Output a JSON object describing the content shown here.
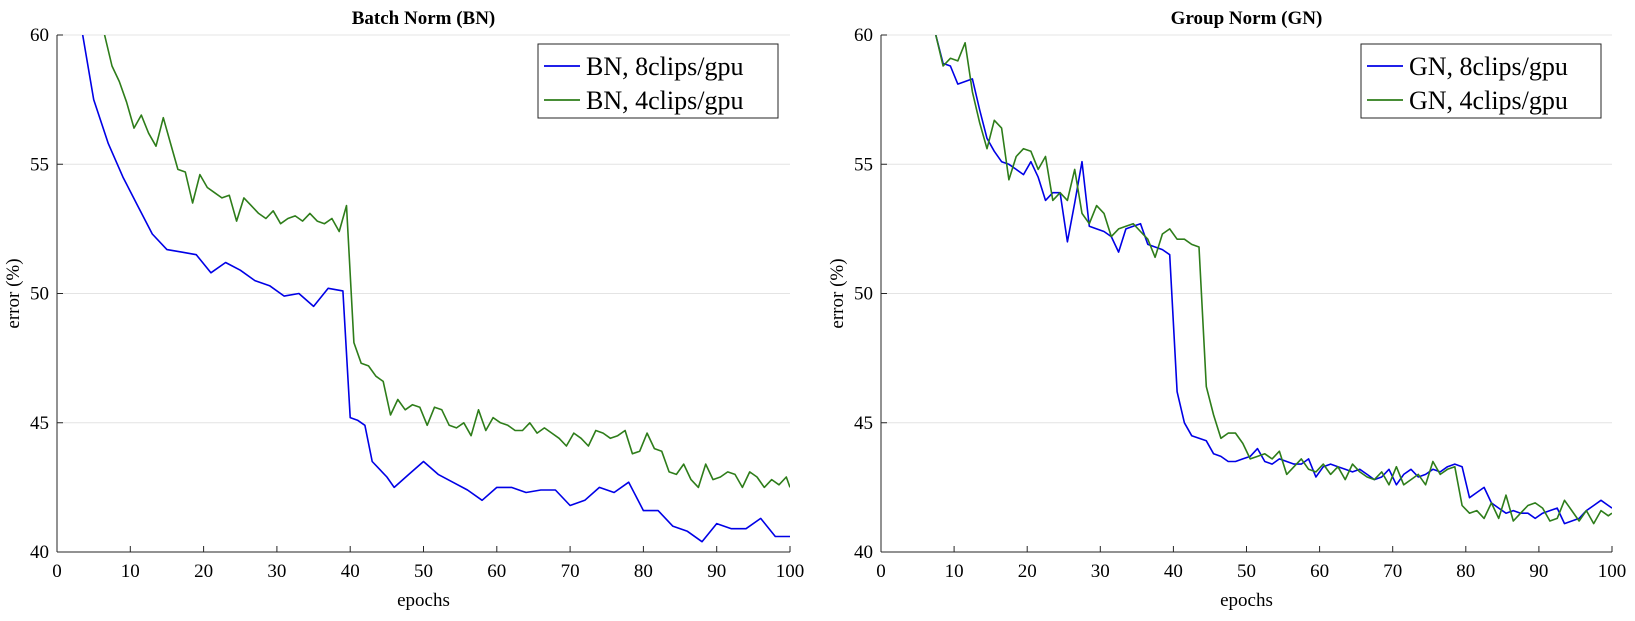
{
  "chart_data": [
    {
      "type": "line",
      "title": "Batch Norm (BN)",
      "xlabel": "epochs",
      "ylabel": "error (%)",
      "xlim": [
        0,
        100
      ],
      "ylim": [
        40,
        60
      ],
      "xticks": [
        0,
        10,
        20,
        30,
        40,
        50,
        60,
        70,
        80,
        90,
        100
      ],
      "yticks": [
        40,
        45,
        50,
        55,
        60
      ],
      "grid": "horizontal",
      "legend_position": "top-right",
      "series": [
        {
          "name": "BN, 8clips/gpu",
          "color": "#0000e6",
          "x": [
            3.5,
            5,
            7,
            9,
            11,
            13,
            15,
            17,
            19,
            21,
            23,
            25,
            27,
            29,
            31,
            33,
            35,
            37,
            39,
            40,
            41,
            42,
            43,
            45,
            46,
            48,
            50,
            52,
            54,
            56,
            58,
            60,
            62,
            64,
            66,
            68,
            70,
            72,
            74,
            76,
            78,
            80,
            82,
            84,
            86,
            88,
            90,
            92,
            94,
            96,
            98,
            100
          ],
          "y": [
            60,
            57.5,
            55.8,
            54.5,
            53.4,
            52.3,
            51.7,
            51.6,
            51.5,
            50.8,
            51.2,
            50.9,
            50.5,
            50.3,
            49.9,
            50.0,
            49.5,
            50.2,
            50.1,
            45.2,
            45.1,
            44.9,
            43.5,
            42.9,
            42.5,
            43.0,
            43.5,
            43.0,
            42.7,
            42.4,
            42.0,
            42.5,
            42.5,
            42.3,
            42.4,
            42.4,
            41.8,
            42.0,
            42.5,
            42.3,
            42.7,
            41.6,
            41.6,
            41.0,
            40.8,
            40.4,
            41.1,
            40.9,
            40.9,
            41.3,
            40.6,
            40.6
          ]
        },
        {
          "name": "BN, 4clips/gpu",
          "color": "#2e7d1a",
          "x": [
            6.5,
            7.5,
            8.5,
            9.5,
            10.5,
            11.5,
            12.5,
            13.5,
            14.5,
            15.5,
            16.5,
            17.5,
            18.5,
            19.5,
            20.5,
            21.5,
            22.5,
            23.5,
            24.5,
            25.5,
            26.5,
            27.5,
            28.5,
            29.5,
            30.5,
            31.5,
            32.5,
            33.5,
            34.5,
            35.5,
            36.5,
            37.5,
            38.5,
            39.5,
            40.5,
            41.5,
            42.5,
            43.5,
            44.5,
            45.5,
            46.5,
            47.5,
            48.5,
            49.5,
            50.5,
            51.5,
            52.5,
            53.5,
            54.5,
            55.5,
            56.5,
            57.5,
            58.5,
            59.5,
            60.5,
            61.5,
            62.5,
            63.5,
            64.5,
            65.5,
            66.5,
            67.5,
            68.5,
            69.5,
            70.5,
            71.5,
            72.5,
            73.5,
            74.5,
            75.5,
            76.5,
            77.5,
            78.5,
            79.5,
            80.5,
            81.5,
            82.5,
            83.5,
            84.5,
            85.5,
            86.5,
            87.5,
            88.5,
            89.5,
            90.5,
            91.5,
            92.5,
            93.5,
            94.5,
            95.5,
            96.5,
            97.5,
            98.5,
            99.5,
            100
          ],
          "y": [
            60,
            58.8,
            58.2,
            57.4,
            56.4,
            56.9,
            56.2,
            55.7,
            56.8,
            55.8,
            54.8,
            54.7,
            53.5,
            54.6,
            54.1,
            53.9,
            53.7,
            53.8,
            52.8,
            53.7,
            53.4,
            53.1,
            52.9,
            53.2,
            52.7,
            52.9,
            53.0,
            52.8,
            53.1,
            52.8,
            52.7,
            52.9,
            52.4,
            53.4,
            48.1,
            47.3,
            47.2,
            46.8,
            46.6,
            45.3,
            45.9,
            45.5,
            45.7,
            45.6,
            44.9,
            45.6,
            45.5,
            44.9,
            44.8,
            45.0,
            44.5,
            45.5,
            44.7,
            45.2,
            45.0,
            44.9,
            44.7,
            44.7,
            45.0,
            44.6,
            44.8,
            44.6,
            44.4,
            44.1,
            44.6,
            44.4,
            44.1,
            44.7,
            44.6,
            44.4,
            44.5,
            44.7,
            43.8,
            43.9,
            44.6,
            44.0,
            43.9,
            43.1,
            43.0,
            43.4,
            42.8,
            42.5,
            43.4,
            42.8,
            42.9,
            43.1,
            43.0,
            42.5,
            43.1,
            42.9,
            42.5,
            42.8,
            42.6,
            42.9,
            42.5
          ]
        }
      ]
    },
    {
      "type": "line",
      "title": "Group Norm (GN)",
      "xlabel": "epochs",
      "ylabel": "error (%)",
      "xlim": [
        0,
        100
      ],
      "ylim": [
        40,
        60
      ],
      "xticks": [
        0,
        10,
        20,
        30,
        40,
        50,
        60,
        70,
        80,
        90,
        100
      ],
      "yticks": [
        40,
        45,
        50,
        55,
        60
      ],
      "grid": "horizontal",
      "legend_position": "top-right",
      "series": [
        {
          "name": "GN, 8clips/gpu",
          "color": "#0000e6",
          "x": [
            7.5,
            8.5,
            9.5,
            10.5,
            11.5,
            12.5,
            13.5,
            14.5,
            15.5,
            16.5,
            17.5,
            18.5,
            19.5,
            20.5,
            21.5,
            22.5,
            23.5,
            24.5,
            25.5,
            26.5,
            27.5,
            28.5,
            29.5,
            30.5,
            31.5,
            32.5,
            33.5,
            34.5,
            35.5,
            36.5,
            37.5,
            38.5,
            39.5,
            40.5,
            41.5,
            42.5,
            43.5,
            44.5,
            45.5,
            46.5,
            47.5,
            48.5,
            49.5,
            50.5,
            51.5,
            52.5,
            53.5,
            54.5,
            55.5,
            56.5,
            57.5,
            58.5,
            59.5,
            60.5,
            61.5,
            62.5,
            63.5,
            64.5,
            65.5,
            66.5,
            67.5,
            68.5,
            69.5,
            70.5,
            71.5,
            72.5,
            73.5,
            74.5,
            75.5,
            76.5,
            77.5,
            78.5,
            79.5,
            80.5,
            81.5,
            82.5,
            83.5,
            84.5,
            85.5,
            86.5,
            87.5,
            88.5,
            89.5,
            90.5,
            91.5,
            92.5,
            93.5,
            94.5,
            95.5,
            96.5,
            97.5,
            98.5,
            99.5,
            100
          ],
          "y": [
            60,
            58.9,
            58.8,
            58.1,
            58.2,
            58.3,
            57.1,
            56.0,
            55.5,
            55.1,
            55.0,
            54.8,
            54.6,
            55.1,
            54.5,
            53.6,
            53.9,
            53.9,
            52.0,
            53.5,
            55.1,
            52.6,
            52.5,
            52.4,
            52.2,
            51.6,
            52.5,
            52.6,
            52.7,
            51.9,
            51.8,
            51.7,
            51.5,
            46.2,
            45.0,
            44.5,
            44.4,
            44.3,
            43.8,
            43.7,
            43.5,
            43.5,
            43.6,
            43.7,
            44.0,
            43.5,
            43.4,
            43.6,
            43.5,
            43.4,
            43.4,
            43.6,
            42.9,
            43.3,
            43.4,
            43.3,
            43.2,
            43.1,
            43.2,
            43.0,
            42.8,
            42.9,
            43.2,
            42.6,
            43.0,
            43.2,
            42.9,
            43.0,
            43.2,
            43.1,
            43.3,
            43.4,
            43.3,
            42.1,
            42.3,
            42.5,
            41.9,
            41.7,
            41.5,
            41.6,
            41.5,
            41.5,
            41.3,
            41.5,
            41.6,
            41.7,
            41.1,
            41.2,
            41.3,
            41.6,
            41.8,
            42.0,
            41.8,
            41.7
          ]
        },
        {
          "name": "GN, 4clips/gpu",
          "color": "#2e7d1a",
          "x": [
            7.5,
            8.5,
            9.5,
            10.5,
            11.5,
            12.5,
            13.5,
            14.5,
            15.5,
            16.5,
            17.5,
            18.5,
            19.5,
            20.5,
            21.5,
            22.5,
            23.5,
            24.5,
            25.5,
            26.5,
            27.5,
            28.5,
            29.5,
            30.5,
            31.5,
            32.5,
            33.5,
            34.5,
            35.5,
            36.5,
            37.5,
            38.5,
            39.5,
            40.5,
            41.5,
            42.5,
            43.5,
            44.5,
            45.5,
            46.5,
            47.5,
            48.5,
            49.5,
            50.5,
            51.5,
            52.5,
            53.5,
            54.5,
            55.5,
            56.5,
            57.5,
            58.5,
            59.5,
            60.5,
            61.5,
            62.5,
            63.5,
            64.5,
            65.5,
            66.5,
            67.5,
            68.5,
            69.5,
            70.5,
            71.5,
            72.5,
            73.5,
            74.5,
            75.5,
            76.5,
            77.5,
            78.5,
            79.5,
            80.5,
            81.5,
            82.5,
            83.5,
            84.5,
            85.5,
            86.5,
            87.5,
            88.5,
            89.5,
            90.5,
            91.5,
            92.5,
            93.5,
            94.5,
            95.5,
            96.5,
            97.5,
            98.5,
            99.5,
            100
          ],
          "y": [
            60,
            58.8,
            59.1,
            59.0,
            59.7,
            57.8,
            56.6,
            55.6,
            56.7,
            56.4,
            54.4,
            55.3,
            55.6,
            55.5,
            54.8,
            55.3,
            53.6,
            53.9,
            53.6,
            54.8,
            53.1,
            52.7,
            53.4,
            53.1,
            52.2,
            52.5,
            52.6,
            52.7,
            52.4,
            52.1,
            51.4,
            52.3,
            52.5,
            52.1,
            52.1,
            51.9,
            51.8,
            46.4,
            45.3,
            44.4,
            44.6,
            44.6,
            44.2,
            43.6,
            43.7,
            43.8,
            43.6,
            43.9,
            43.0,
            43.3,
            43.6,
            43.2,
            43.1,
            43.4,
            43.0,
            43.3,
            42.8,
            43.4,
            43.1,
            42.9,
            42.8,
            43.1,
            42.6,
            43.3,
            42.6,
            42.8,
            43.0,
            42.6,
            43.5,
            43.0,
            43.2,
            43.3,
            41.8,
            41.5,
            41.6,
            41.3,
            41.9,
            41.3,
            42.2,
            41.2,
            41.5,
            41.8,
            41.9,
            41.7,
            41.2,
            41.3,
            42.0,
            41.6,
            41.2,
            41.6,
            41.1,
            41.6,
            41.4,
            41.5
          ]
        }
      ]
    }
  ]
}
